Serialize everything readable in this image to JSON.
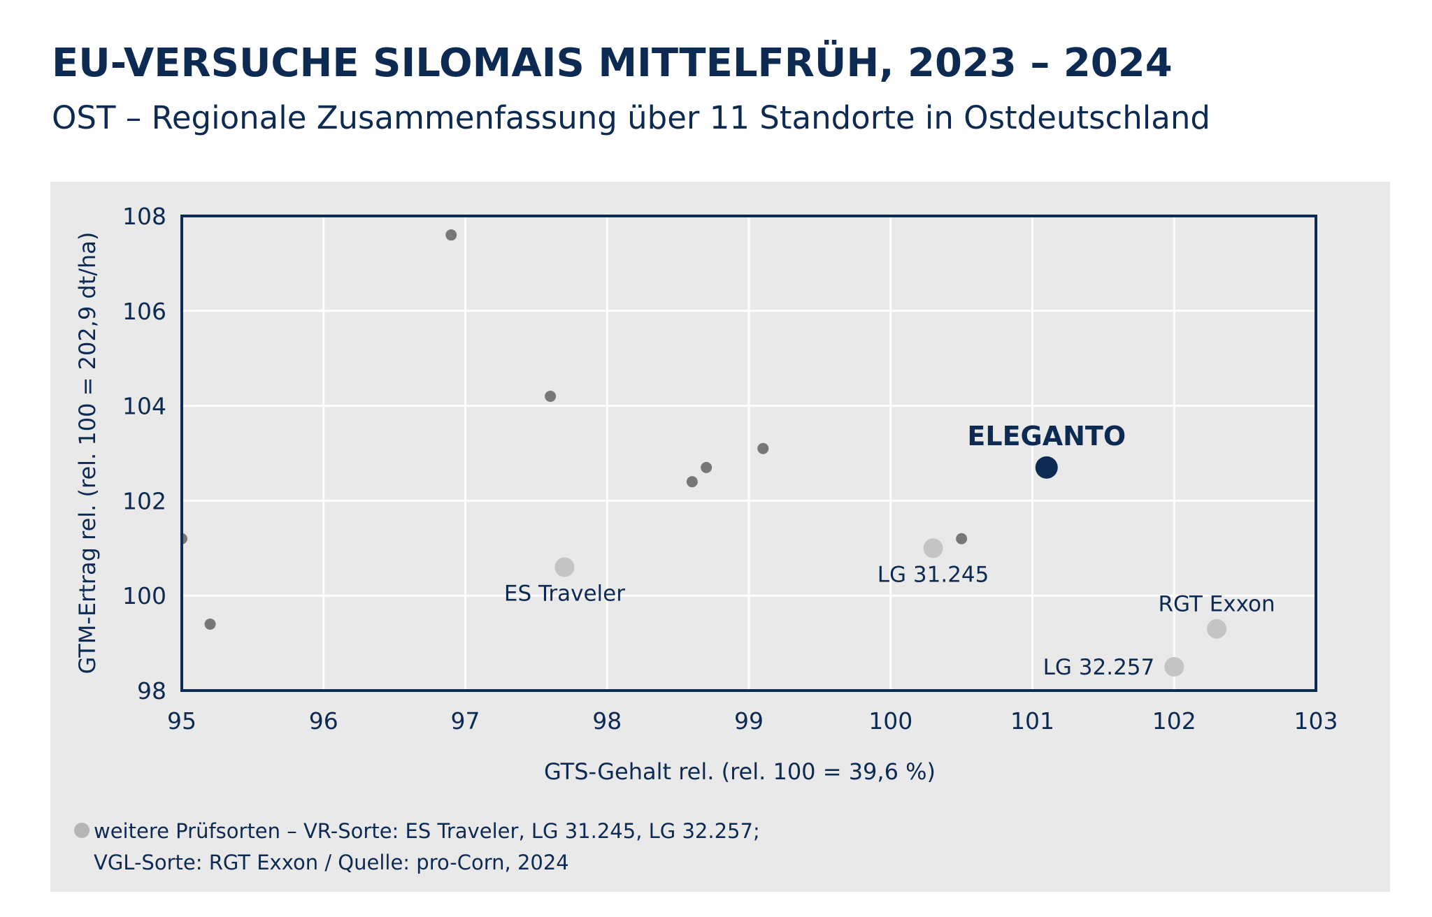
{
  "title": "EU-VERSUCHE SILOMAIS MITTELFRÜH, 2023 – 2024",
  "subtitle": "OST – Regionale Zusammenfassung über 11 Standorte in Ostdeutschland",
  "footnote": {
    "line1": "weitere Prüfsorten – VR-Sorte: ES Traveler, LG 31.245, LG 32.257;",
    "line2": "VGL-Sorte: RGT Exxon / Quelle: pro-Corn, 2024"
  },
  "colors": {
    "navy": "#0d2a52",
    "highlight": "#0d2a52",
    "reference": "#c4c4c4",
    "other": "#777777",
    "panel": "#e9e9e9",
    "grid": "#ffffff"
  },
  "chart_data": {
    "type": "scatter",
    "xlabel": "GTS-Gehalt rel. (rel. 100 = 39,6 %)",
    "ylabel": "GTM-Ertrag rel. (rel. 100 = 202,9 dt/ha)",
    "xlim": [
      95,
      103
    ],
    "ylim": [
      98,
      108
    ],
    "xticks": [
      95,
      96,
      97,
      98,
      99,
      100,
      101,
      102,
      103
    ],
    "yticks": [
      98,
      100,
      102,
      104,
      106,
      108
    ],
    "grid": true,
    "legend": "bottom-left",
    "series": [
      {
        "kind": "highlight",
        "points": [
          {
            "x": 101.1,
            "y": 102.7,
            "label": "ELEGANTO",
            "label_pos": "above"
          }
        ]
      },
      {
        "kind": "reference",
        "points": [
          {
            "x": 97.7,
            "y": 100.6,
            "label": "ES Traveler",
            "label_pos": "below"
          },
          {
            "x": 100.3,
            "y": 101.0,
            "label": "LG 31.245",
            "label_pos": "below"
          },
          {
            "x": 102.3,
            "y": 99.3,
            "label": "RGT Exxon",
            "label_pos": "above"
          },
          {
            "x": 102.0,
            "y": 98.5,
            "label": "LG 32.257",
            "label_pos": "left"
          }
        ]
      },
      {
        "kind": "other",
        "points": [
          {
            "x": 96.9,
            "y": 107.6
          },
          {
            "x": 97.6,
            "y": 104.2
          },
          {
            "x": 99.1,
            "y": 103.1
          },
          {
            "x": 98.7,
            "y": 102.7
          },
          {
            "x": 98.6,
            "y": 102.4
          },
          {
            "x": 100.5,
            "y": 101.2
          },
          {
            "x": 95.0,
            "y": 101.2
          },
          {
            "x": 95.2,
            "y": 99.4
          }
        ]
      }
    ]
  }
}
